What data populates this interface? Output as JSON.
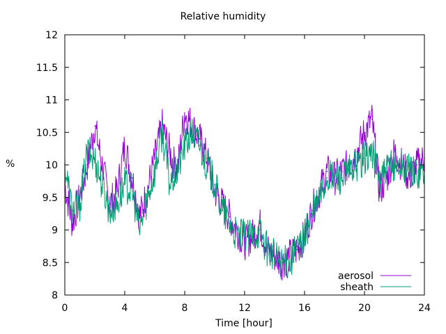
{
  "chart_data": {
    "type": "line",
    "title": "Relative humidity",
    "xlabel": "Time [hour]",
    "ylabel": "%",
    "xlim": [
      0,
      24
    ],
    "ylim": [
      8,
      12
    ],
    "xticks": [
      "0",
      "4",
      "8",
      "12",
      "16",
      "20",
      "24"
    ],
    "yticks": [
      "8",
      "8.5",
      "9",
      "9.5",
      "10",
      "10.5",
      "11",
      "11.5",
      "12"
    ],
    "grid": false,
    "legend_position": "bottom-right",
    "x": [
      0,
      0.5,
      1,
      1.5,
      2,
      2.5,
      3,
      3.5,
      4,
      4.5,
      5,
      5.5,
      6,
      6.5,
      7,
      7.5,
      8,
      8.5,
      9,
      9.5,
      10,
      10.5,
      11,
      11.5,
      12,
      12.5,
      13,
      13.5,
      14,
      14.5,
      15,
      15.5,
      16,
      16.5,
      17,
      17.5,
      18,
      18.5,
      19,
      19.5,
      20,
      20.5,
      21,
      21.5,
      22,
      22.5,
      23,
      23.5,
      24
    ],
    "series": [
      {
        "name": "aerosol",
        "color": "#9400d3",
        "values": [
          9.7,
          9.1,
          9.5,
          10.0,
          10.6,
          10.0,
          9.4,
          9.6,
          10.3,
          9.8,
          9.2,
          9.6,
          10.1,
          10.6,
          10.2,
          9.9,
          10.8,
          10.6,
          10.4,
          10.1,
          9.6,
          9.4,
          9.2,
          9.0,
          8.8,
          8.9,
          9.1,
          8.7,
          8.6,
          8.5,
          8.6,
          8.7,
          8.9,
          9.3,
          9.6,
          9.9,
          9.8,
          9.9,
          10.0,
          10.2,
          10.5,
          10.7,
          9.6,
          9.8,
          10.2,
          10.0,
          9.8,
          10.0,
          10.1
        ]
      },
      {
        "name": "sheath",
        "color": "#009e73",
        "values": [
          10.0,
          9.3,
          9.4,
          10.2,
          10.1,
          9.7,
          9.3,
          9.4,
          9.7,
          9.6,
          9.0,
          9.5,
          9.9,
          10.5,
          9.7,
          9.9,
          10.3,
          10.5,
          10.3,
          10.0,
          9.7,
          9.3,
          9.1,
          8.9,
          8.9,
          8.9,
          9.0,
          8.7,
          8.6,
          8.5,
          8.5,
          8.7,
          8.9,
          9.2,
          9.5,
          9.8,
          9.8,
          9.8,
          9.9,
          10.0,
          10.1,
          10.2,
          9.8,
          9.9,
          10.0,
          10.0,
          9.9,
          9.9,
          9.9
        ]
      }
    ]
  }
}
